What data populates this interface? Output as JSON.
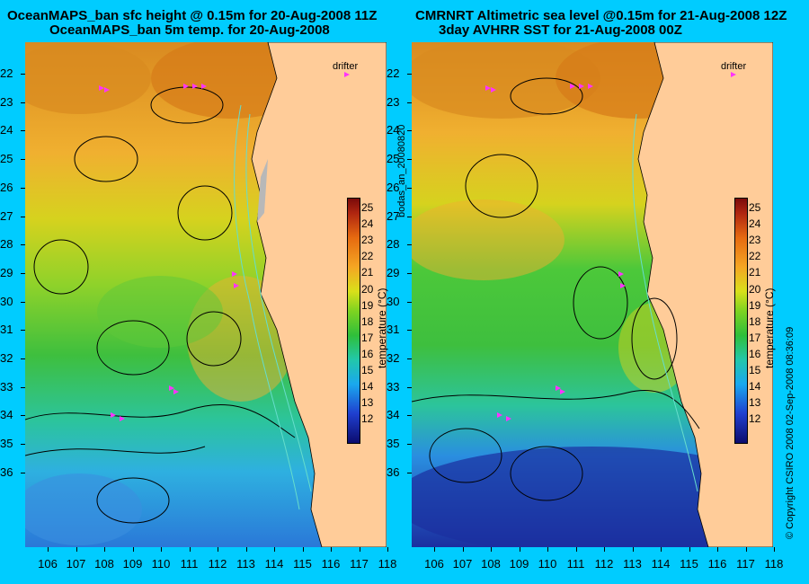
{
  "titles": {
    "left_line1": "OceanMAPS_ban sfc height @ 0.15m for 20-Aug-2008 11Z",
    "left_line2": "OceanMAPS_ban 5m temp. for 20-Aug-2008",
    "right_line1": "CMRNRT Altimetric sea level  @0.15m  for 21-Aug-2008 12Z",
    "right_line2": "3day AVHRR SST for 21-Aug-2008 00Z"
  },
  "drifter_label": "drifter",
  "y_ticks": [
    "22",
    "23",
    "24",
    "25",
    "26",
    "27",
    "28",
    "29",
    "30",
    "31",
    "32",
    "33",
    "34",
    "35",
    "36"
  ],
  "x_ticks": [
    "106",
    "107",
    "108",
    "109",
    "110",
    "111",
    "112",
    "113",
    "114",
    "115",
    "116",
    "117",
    "118"
  ],
  "colorbar": {
    "title": "temperature (°C)",
    "labels": [
      "25",
      "24",
      "23",
      "22",
      "21",
      "20",
      "19",
      "18",
      "17",
      "16",
      "15",
      "14",
      "13",
      "12"
    ]
  },
  "side_texts": {
    "middle": "bodas_an_20080820",
    "right": "© Copyright CSIRO 2008   02-Sep-2008 08:36:09"
  },
  "colors": {
    "background": "#00ccff",
    "land": "#ffcc99",
    "drifter": "#ff33ff"
  }
}
